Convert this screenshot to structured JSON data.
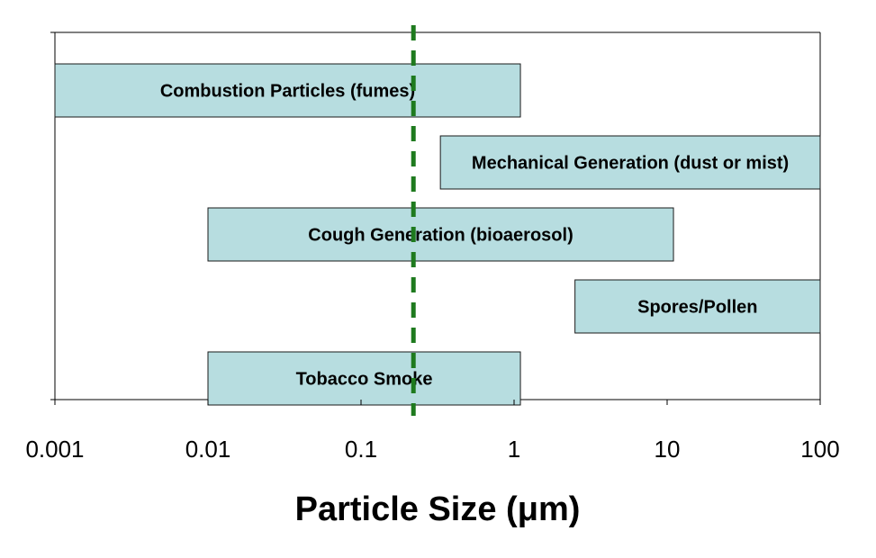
{
  "chart_data": {
    "type": "bar",
    "orientation": "horizontal-range",
    "xlabel": "Particle Size (μm)",
    "xscale": "log",
    "xlim": [
      0.001,
      100
    ],
    "x_ticks": [
      "0.001",
      "0.01",
      "0.1",
      "1",
      "10",
      "100"
    ],
    "grid": false,
    "series": [
      {
        "label": "Combustion Particles (fumes)",
        "min": 0.001,
        "max": 1.1
      },
      {
        "label": "Mechanical Generation (dust or mist)",
        "min": 0.33,
        "max": 100
      },
      {
        "label": "Cough Generation (bioaerosol)",
        "min": 0.01,
        "max": 11
      },
      {
        "label": "Spores/Pollen",
        "min": 2.5,
        "max": 100
      },
      {
        "label": "Tobacco Smoke",
        "min": 0.01,
        "max": 1.1
      }
    ],
    "reference_line": {
      "x": 0.22,
      "style": "dashed",
      "color": "#1e7a1e"
    },
    "bar_color": "#b7dde0"
  }
}
